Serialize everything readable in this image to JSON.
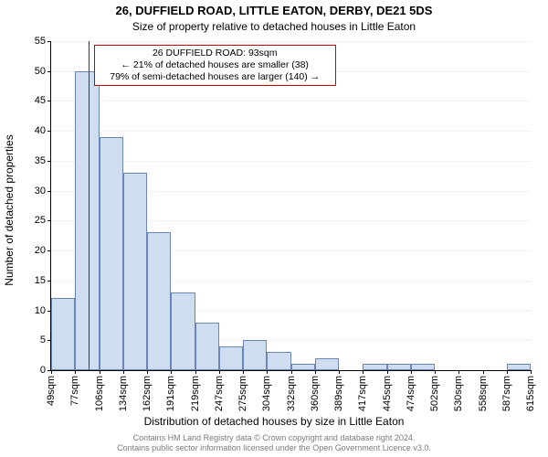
{
  "titles": {
    "line1": "26, DUFFIELD ROAD, LITTLE EATON, DERBY, DE21 5DS",
    "line2": "Size of property relative to detached houses in Little Eaton"
  },
  "axes": {
    "ylabel": "Number of detached properties",
    "xlabel": "Distribution of detached houses by size in Little Eaton",
    "ylim": [
      0,
      55
    ],
    "ytick_step": 5,
    "grid_color": "#e6e6e6"
  },
  "chart": {
    "type": "histogram",
    "bar_fill": "#cfddf0",
    "bar_border": "#6b86b6",
    "background": "#ffffff",
    "reference_line": {
      "x_index": 2,
      "color": "#d00000"
    },
    "categories": [
      "49sqm",
      "77sqm",
      "106sqm",
      "134sqm",
      "162sqm",
      "191sqm",
      "219sqm",
      "247sqm",
      "275sqm",
      "304sqm",
      "332sqm",
      "360sqm",
      "389sqm",
      "417sqm",
      "445sqm",
      "474sqm",
      "502sqm",
      "530sqm",
      "558sqm",
      "587sqm",
      "615sqm"
    ],
    "values": [
      12,
      50,
      39,
      33,
      23,
      13,
      8,
      4,
      5,
      3,
      1,
      2,
      0,
      1,
      1,
      1,
      0,
      0,
      0,
      1
    ]
  },
  "annotation": {
    "line1": "26 DUFFIELD ROAD: 93sqm",
    "line2": "← 21% of detached houses are smaller (38)",
    "line3": "79% of semi-detached houses are larger (140) →",
    "border_color": "#d00000"
  },
  "footer": {
    "line1": "Contains HM Land Registry data © Crown copyright and database right 2024.",
    "line2": "Contains public sector information licensed under the Open Government Licence v3.0."
  }
}
